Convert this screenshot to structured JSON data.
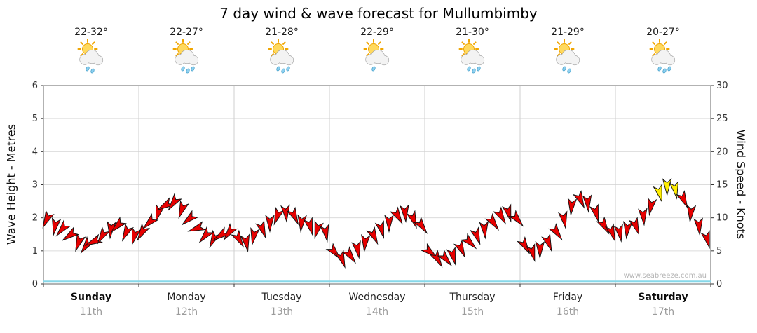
{
  "title": "7 day wind & wave forecast for Mullumbimby",
  "watermark": "www.seabreeze.com.au",
  "axes": {
    "left_label": "Wave Height - Metres",
    "right_label": "Wind Speed - Knots",
    "left_ticks": [
      "0",
      "1",
      "2",
      "3",
      "4",
      "5",
      "6"
    ],
    "right_ticks": [
      "0",
      "5",
      "10",
      "15",
      "20",
      "25",
      "30"
    ],
    "left_range": [
      0,
      6
    ],
    "right_range": [
      0,
      30
    ]
  },
  "days": [
    {
      "name": "Sunday",
      "date": "11th",
      "temp": "22-32°",
      "bold": true,
      "icon": "sun-cloud-rain",
      "rain_drops": 2
    },
    {
      "name": "Monday",
      "date": "12th",
      "temp": "22-27°",
      "bold": false,
      "icon": "sun-cloud-rain",
      "rain_drops": 3
    },
    {
      "name": "Tuesday",
      "date": "13th",
      "temp": "21-28°",
      "bold": false,
      "icon": "sun-cloud-rain",
      "rain_drops": 3
    },
    {
      "name": "Wednesday",
      "date": "14th",
      "temp": "22-29°",
      "bold": false,
      "icon": "sun-cloud-rain",
      "rain_drops": 1
    },
    {
      "name": "Thursday",
      "date": "15th",
      "temp": "21-30°",
      "bold": false,
      "icon": "sun-cloud-rain",
      "rain_drops": 3
    },
    {
      "name": "Friday",
      "date": "16th",
      "temp": "21-29°",
      "bold": false,
      "icon": "sun-cloud-rain",
      "rain_drops": 2
    },
    {
      "name": "Saturday",
      "date": "17th",
      "temp": "20-27°",
      "bold": true,
      "icon": "sun-cloud-rain",
      "rain_drops": 3
    }
  ],
  "chart_data": {
    "type": "line",
    "title": "7 day wind & wave forecast for Mullumbimby",
    "categories": [
      "Sunday 11th",
      "Monday 12th",
      "Tuesday 13th",
      "Wednesday 14th",
      "Thursday 15th",
      "Friday 16th",
      "Saturday 17th"
    ],
    "samples_per_day": 12,
    "y_left": {
      "label": "Wave Height - Metres",
      "range": [
        0,
        6
      ]
    },
    "y_right": {
      "label": "Wind Speed - Knots",
      "range": [
        0,
        30
      ]
    },
    "grid": true,
    "legend": "none",
    "series": [
      {
        "name": "Wind Speed",
        "unit": "knots",
        "axis": "right",
        "style": "wind-arrows",
        "color_normal": "#e60000",
        "color_strong": "#ffee00",
        "strong_threshold_knots": 14,
        "values": [
          10,
          9,
          8.5,
          7.5,
          6.5,
          6,
          6.5,
          7.5,
          8.5,
          9,
          8,
          7.5,
          8,
          9.5,
          11,
          12,
          12.5,
          11.5,
          10,
          8.5,
          7.5,
          7,
          7.5,
          8,
          7,
          6.5,
          7.5,
          8.5,
          9.5,
          10.5,
          11,
          10.5,
          9.5,
          9,
          8.5,
          8,
          5,
          4,
          4.5,
          5.5,
          6.5,
          7.5,
          8.5,
          9.5,
          10.5,
          11,
          10,
          9,
          5,
          4,
          4,
          4.5,
          5.5,
          6.5,
          7.5,
          8.5,
          9.5,
          10.5,
          11,
          10,
          6,
          5,
          5.5,
          6.5,
          8,
          10,
          12,
          13,
          12.5,
          11,
          9,
          8,
          8,
          8.5,
          9,
          10.5,
          12,
          14,
          15,
          14.5,
          13,
          11,
          9,
          7
        ],
        "directions_deg": [
          205,
          190,
          220,
          235,
          200,
          215,
          245,
          210,
          185,
          225,
          205,
          195,
          210,
          225,
          195,
          240,
          215,
          200,
          230,
          250,
          220,
          205,
          235,
          215,
          150,
          170,
          190,
          160,
          180,
          200,
          175,
          155,
          185,
          165,
          195,
          170,
          140,
          160,
          145,
          170,
          185,
          155,
          165,
          180,
          150,
          175,
          160,
          145,
          130,
          150,
          140,
          165,
          155,
          135,
          160,
          175,
          145,
          150,
          165,
          140,
          150,
          165,
          180,
          160,
          145,
          170,
          185,
          155,
          175,
          165,
          150,
          160,
          170,
          185,
          160,
          175,
          190,
          165,
          180,
          170,
          155,
          185,
          175,
          165
        ]
      },
      {
        "name": "Wave Height",
        "unit": "m",
        "axis": "left",
        "style": "line",
        "color": "#86d7e8",
        "values": [
          0.08,
          0.08,
          0.08,
          0.08,
          0.08,
          0.08,
          0.08,
          0.08,
          0.08,
          0.08,
          0.08,
          0.08,
          0.08,
          0.08,
          0.08
        ]
      }
    ]
  }
}
